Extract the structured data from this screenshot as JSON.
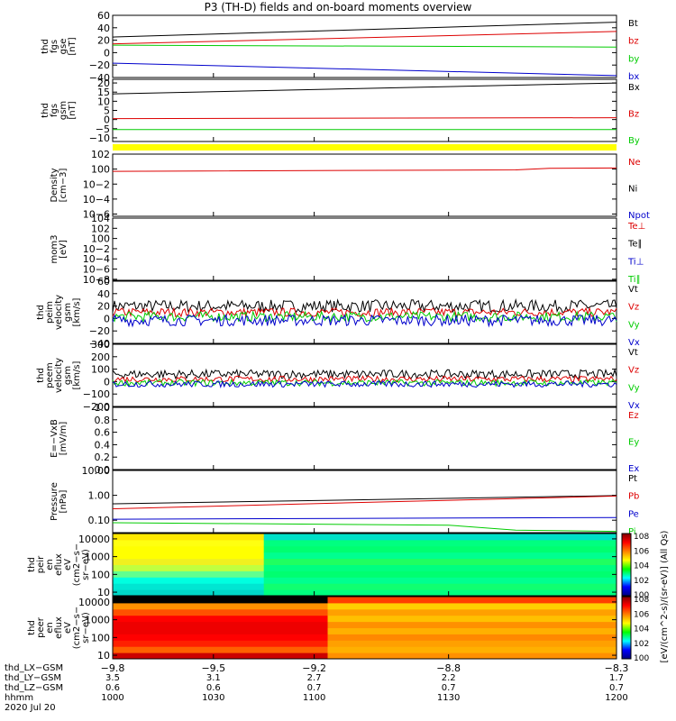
{
  "title": "P3 (TH-D) fields and on-board moments overview",
  "colors": {
    "black": "#000000",
    "red": "#dd0000",
    "green": "#00cc00",
    "blue": "#0000cc",
    "yellow": "#ffff00"
  },
  "chart_data": [
    {
      "id": "fgs",
      "type": "line",
      "ylabel": [
        "thd",
        "fgs",
        "gse",
        "[nT]"
      ],
      "ylim": [
        -40,
        60
      ],
      "yticks": [
        -40,
        -20,
        0,
        20,
        40,
        60
      ],
      "tick_labels": [
        "−40",
        "−20",
        "0",
        "20",
        "40",
        "60"
      ],
      "series": [
        {
          "name": "Bt",
          "color": "#000000",
          "x": [
            -9.8,
            -8.3
          ],
          "values": [
            25,
            49
          ]
        },
        {
          "name": "bz",
          "color": "#dd0000",
          "x": [
            -9.8,
            -8.3
          ],
          "values": [
            14,
            34
          ]
        },
        {
          "name": "by",
          "color": "#00cc00",
          "x": [
            -9.8,
            -8.3
          ],
          "values": [
            12,
            9
          ]
        },
        {
          "name": "bx",
          "color": "#0000cc",
          "x": [
            -9.8,
            -8.3
          ],
          "values": [
            -17,
            -37
          ]
        }
      ]
    },
    {
      "id": "fgsm",
      "type": "line",
      "ylabel": [
        "thd",
        "fgs",
        "gsm",
        "[nT]"
      ],
      "ylim": [
        -12,
        22
      ],
      "yticks": [
        -10,
        -5,
        0,
        5,
        10,
        15,
        20
      ],
      "tick_labels": [
        "−10",
        "−5",
        "0",
        "5",
        "10",
        "15",
        "20"
      ],
      "series": [
        {
          "name": "Bx",
          "color": "#000000",
          "x": [
            -9.8,
            -8.3
          ],
          "values": [
            14,
            20
          ]
        },
        {
          "name": "Bz",
          "color": "#dd0000",
          "x": [
            -9.8,
            -8.3
          ],
          "values": [
            0.5,
            1
          ]
        },
        {
          "name": "By",
          "color": "#00cc00",
          "x": [
            -9.8,
            -8.3
          ],
          "values": [
            -5.5,
            -5.5
          ]
        }
      ]
    },
    {
      "id": "density",
      "type": "line",
      "ylabel": [
        "Density",
        "[cm−3]"
      ],
      "yscale": "log",
      "ylim": [
        -6.3,
        2
      ],
      "yticks": [
        -6,
        -4,
        -2,
        0,
        2
      ],
      "tick_labels": [
        "10−6",
        "10−4",
        "10−2",
        "100",
        "102"
      ],
      "series": [
        {
          "name": "Ne",
          "color": "#dd0000",
          "x": [
            -9.8,
            -8.6,
            -8.5,
            -8.3
          ],
          "values": [
            -0.3,
            -0.1,
            0.1,
            0.15
          ]
        },
        {
          "name": "Ni",
          "color": "#000000",
          "x": [],
          "values": []
        },
        {
          "name": "Npot",
          "color": "#0000cc",
          "x": [],
          "values": []
        }
      ]
    },
    {
      "id": "temp",
      "type": "line",
      "ylabel": [
        "mom3",
        "[eV]"
      ],
      "yscale": "log",
      "ylim": [
        -8.2,
        4
      ],
      "yticks": [
        -8,
        -6,
        -4,
        -2,
        0,
        2,
        4
      ],
      "tick_labels": [
        "10−8",
        "10−6",
        "10−4",
        "10−2",
        "100",
        "102",
        "104"
      ],
      "series": [
        {
          "name": "Te⊥",
          "color": "#dd0000",
          "x": [],
          "values": []
        },
        {
          "name": "Te∥",
          "color": "#000000",
          "x": [],
          "values": []
        },
        {
          "name": "Ti⊥",
          "color": "#0000cc",
          "x": [],
          "values": []
        },
        {
          "name": "Ti∥",
          "color": "#00cc00",
          "x": [],
          "values": []
        }
      ]
    },
    {
      "id": "peim",
      "type": "line",
      "ylabel": [
        "thd",
        "peim",
        "velocity",
        "gsm",
        "[km/s]"
      ],
      "ylim": [
        -40,
        60
      ],
      "yticks": [
        -40,
        -20,
        0,
        20,
        40,
        60
      ],
      "tick_labels": [
        "−40",
        "−20",
        "0",
        "20",
        "40",
        "60"
      ],
      "series": [
        {
          "name": "Vt",
          "color": "#000000",
          "x": [
            -9.8,
            -8.3
          ],
          "values": [
            20,
            20
          ],
          "noise": 10
        },
        {
          "name": "Vz",
          "color": "#dd0000",
          "x": [
            -9.8,
            -8.3
          ],
          "values": [
            10,
            10
          ],
          "noise": 7
        },
        {
          "name": "Vy",
          "color": "#00cc00",
          "x": [
            -9.8,
            -8.3
          ],
          "values": [
            3,
            3
          ],
          "noise": 8
        },
        {
          "name": "Vx",
          "color": "#0000cc",
          "x": [
            -9.8,
            -8.3
          ],
          "values": [
            -3,
            -3
          ],
          "noise": 9
        }
      ]
    },
    {
      "id": "peem",
      "type": "line",
      "ylabel": [
        "thd",
        "peem",
        "velocity",
        "gsm",
        "[km/s]"
      ],
      "ylim": [
        -200,
        300
      ],
      "yticks": [
        -200,
        -100,
        0,
        100,
        200,
        300
      ],
      "tick_labels": [
        "−200",
        "−100",
        "0",
        "100",
        "200",
        "300"
      ],
      "series": [
        {
          "name": "Vt",
          "color": "#000000",
          "x": [
            -9.8,
            -8.3
          ],
          "values": [
            60,
            60
          ],
          "noise": 35
        },
        {
          "name": "Vz",
          "color": "#dd0000",
          "x": [
            -9.8,
            -8.3
          ],
          "values": [
            20,
            20
          ],
          "noise": 25
        },
        {
          "name": "Vy",
          "color": "#00cc00",
          "x": [
            -9.8,
            -8.3
          ],
          "values": [
            -10,
            -10
          ],
          "noise": 25
        },
        {
          "name": "Vx",
          "color": "#0000cc",
          "x": [
            -9.8,
            -8.3
          ],
          "values": [
            -20,
            -20
          ],
          "noise": 25
        }
      ]
    },
    {
      "id": "efield",
      "type": "line",
      "ylabel": [
        "E=−VxB",
        "[mV/m]"
      ],
      "ylim": [
        0,
        1
      ],
      "yticks": [
        0,
        0.2,
        0.4,
        0.6,
        0.8,
        1.0
      ],
      "tick_labels": [
        "0.0",
        "0.2",
        "0.4",
        "0.6",
        "0.8",
        "1.0"
      ],
      "series": [
        {
          "name": "Ez",
          "color": "#dd0000",
          "x": [],
          "values": []
        },
        {
          "name": "Ey",
          "color": "#00cc00",
          "x": [],
          "values": []
        },
        {
          "name": "Ex",
          "color": "#0000cc",
          "x": [],
          "values": []
        }
      ]
    },
    {
      "id": "pressure",
      "type": "line",
      "ylabel": [
        "Pressure",
        "[nPa]"
      ],
      "yscale": "log",
      "ylim": [
        -1.5,
        1
      ],
      "yticks": [
        -1,
        0,
        1
      ],
      "tick_labels": [
        "0.10",
        "1.00",
        "10.00"
      ],
      "series": [
        {
          "name": "Pt",
          "color": "#000000",
          "x": [
            -9.8,
            -8.3
          ],
          "values": [
            -0.34,
            -0.01
          ]
        },
        {
          "name": "Pb",
          "color": "#dd0000",
          "x": [
            -9.8,
            -8.3
          ],
          "values": [
            -0.54,
            -0.03
          ]
        },
        {
          "name": "Pe",
          "color": "#0000cc",
          "x": [
            -9.8,
            -8.3
          ],
          "values": [
            -0.96,
            -0.89
          ]
        },
        {
          "name": "Pi",
          "color": "#00cc00",
          "x": [
            -9.8,
            -8.8,
            -8.6,
            -8.3
          ],
          "values": [
            -1.1,
            -1.2,
            -1.4,
            -1.45
          ]
        }
      ]
    },
    {
      "id": "peir",
      "type": "heatmap",
      "ylabel": [
        "thd",
        "peir",
        "en",
        "eflux",
        "eV",
        "(cm2−s−",
        "sr−eV)"
      ],
      "yscale": "log",
      "ylim": [
        0.8,
        4.3
      ],
      "yticks": [
        1,
        2,
        3,
        4
      ],
      "tick_labels": [
        "10",
        "100",
        "1000",
        "10000"
      ],
      "blocks": [
        {
          "x": [
            -9.8,
            -9.35
          ],
          "colors": [
            "#00d8c8",
            "#00e6d2",
            "#00ffe0",
            "#60ff90",
            "#c0ff40",
            "#f0f020",
            "#ffff00",
            "#ffff00",
            "#ffff10",
            "#ffe800"
          ]
        },
        {
          "x": [
            -9.35,
            -8.3
          ],
          "colors": [
            "#00ff80",
            "#10ff70",
            "#00ff90",
            "#00ff70",
            "#00ff80",
            "#20ff60",
            "#00ff90",
            "#00ff70",
            "#00ff80",
            "#00e0c8"
          ]
        }
      ]
    },
    {
      "id": "peer",
      "type": "heatmap",
      "ylabel": [
        "thd",
        "peer",
        "en",
        "eflux",
        "eV",
        "(cm2−s−",
        "sr−eV)"
      ],
      "yscale": "log",
      "ylim": [
        0.8,
        4.3
      ],
      "yticks": [
        1,
        2,
        3,
        4
      ],
      "tick_labels": [
        "10",
        "100",
        "1000",
        "10000"
      ],
      "blocks": [
        {
          "x": [
            -9.8,
            -9.16
          ],
          "colors": [
            "#cc0000",
            "#ff6000",
            "#ff2000",
            "#ff0000",
            "#ee0000",
            "#ee0000",
            "#ff0000",
            "#ff5000",
            "#ff9000",
            "#000000"
          ]
        },
        {
          "x": [
            -9.16,
            -8.3
          ],
          "colors": [
            "#ff9000",
            "#ffb000",
            "#ffa000",
            "#ff8800",
            "#ffb000",
            "#ff9000",
            "#ffc000",
            "#ffa000",
            "#ffd000",
            "#ff4000"
          ]
        }
      ]
    }
  ],
  "colorbar": {
    "label": "[eV/(cm^2-s)/(sr-eV)] (All Qs)",
    "tick_labels": [
      "100",
      "102",
      "104",
      "106",
      "108"
    ]
  },
  "xaxis": {
    "xlim": [
      -9.8,
      -8.3
    ],
    "tick_values": [
      -9.8,
      -9.5,
      -9.2,
      -8.8,
      -8.3
    ],
    "tick_labels": [
      "−9.8",
      "−9.5",
      "−9.2",
      "−8.8",
      "−8.3"
    ],
    "rows": [
      {
        "label": "thd_LX−GSM",
        "values": [
          "",
          "",
          "",
          "",
          ""
        ]
      },
      {
        "label": "thd_LY−GSM",
        "values": [
          "3.5",
          "3.1",
          "2.7",
          "2.2",
          "1.7"
        ]
      },
      {
        "label": "thd_LZ−GSM",
        "values": [
          "0.6",
          "0.6",
          "0.7",
          "0.7",
          "0.7"
        ]
      },
      {
        "label": "hhmm",
        "values": [
          "1000",
          "1030",
          "1100",
          "1130",
          "1200"
        ]
      }
    ],
    "date": "2020 Jul 20"
  }
}
